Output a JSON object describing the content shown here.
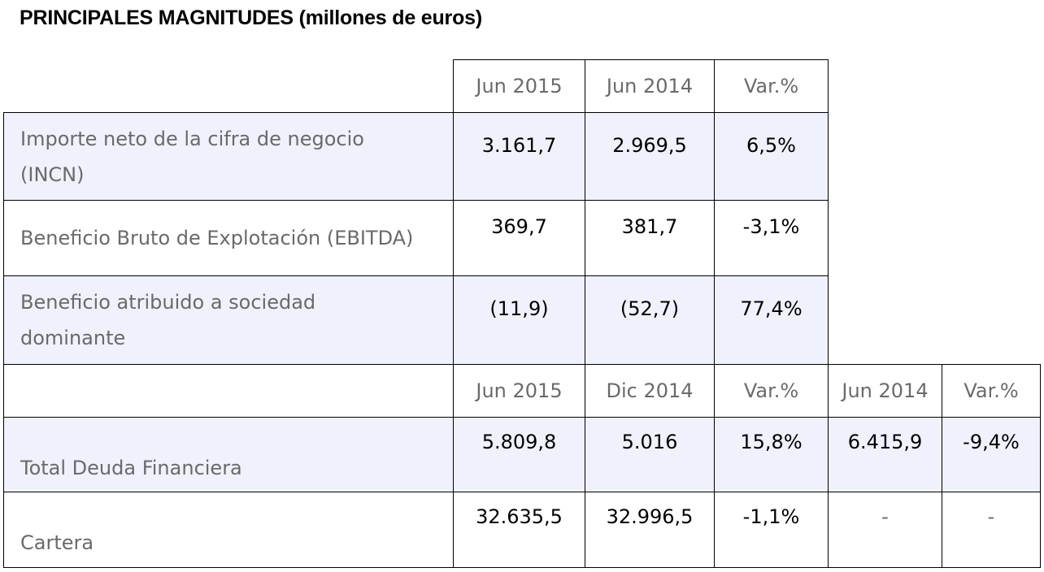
{
  "title": "PRINCIPALES MAGNITUDES (millones de euros)",
  "header1": {
    "col1": "Jun 2015",
    "col2": "Jun 2014",
    "col3": "Var.%"
  },
  "rows1": [
    {
      "label_line1": "Importe neto de la cifra de negocio",
      "label_line2": "(INCN)",
      "v1": "3.161,7",
      "v2": "2.969,5",
      "v3": "6,5%"
    },
    {
      "label": "Beneficio Bruto de Explotación (EBITDA)",
      "v1": "369,7",
      "v2": "381,7",
      "v3": "-3,1%"
    },
    {
      "label_line1": "Beneficio atribuido a sociedad",
      "label_line2": "dominante",
      "v1": "(11,9)",
      "v2": "(52,7)",
      "v3": "77,4%"
    }
  ],
  "header2": {
    "col1": "Jun 2015",
    "col2": "Dic 2014",
    "col3": "Var.%",
    "col4": "Jun 2014",
    "col5": "Var.%"
  },
  "rows2": [
    {
      "label": "Total Deuda Financiera",
      "v1": "5.809,8",
      "v2": "5.016",
      "v3": "15,8%",
      "v4": "6.415,9",
      "v5": "-9,4%"
    },
    {
      "label": "Cartera",
      "v1": "32.635,5",
      "v2": "32.996,5",
      "v3": "-1,1%",
      "v4": "-",
      "v5": "-"
    }
  ]
}
